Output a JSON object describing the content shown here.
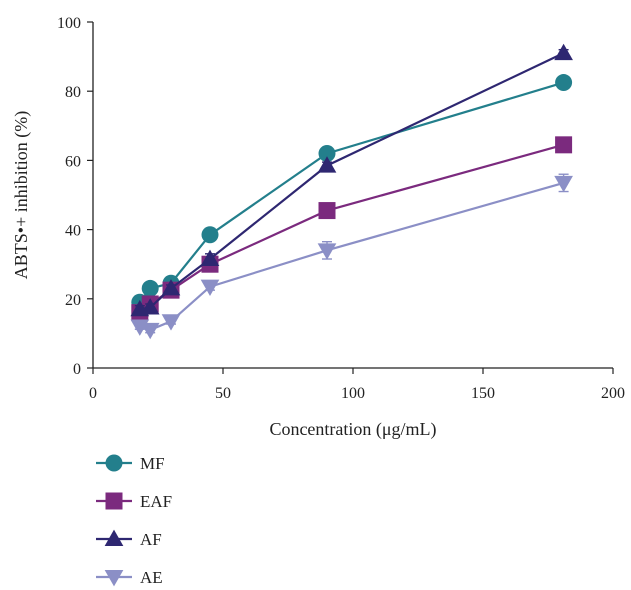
{
  "chart_data": {
    "type": "line",
    "xlabel": "Concentration (μg/mL)",
    "ylabel": "ABTS•+ inhibition (%)",
    "xlim": [
      0,
      200
    ],
    "ylim": [
      0,
      100
    ],
    "xticks": [
      0,
      50,
      100,
      150,
      200
    ],
    "yticks": [
      0,
      20,
      40,
      60,
      80,
      100
    ],
    "grid": false,
    "legend_placement": "bottom-left",
    "series": [
      {
        "name": "MF",
        "marker": "circle",
        "color": "#237f8c",
        "x": [
          18,
          22,
          30,
          45,
          90,
          181
        ],
        "y": [
          19,
          23,
          24.5,
          38.5,
          62,
          82.5
        ],
        "err": [
          0.8,
          0.8,
          0.8,
          1,
          1,
          1
        ]
      },
      {
        "name": "EAF",
        "marker": "square",
        "color": "#7b2a7e",
        "x": [
          18,
          22,
          30,
          45,
          90,
          181
        ],
        "y": [
          16,
          18.5,
          22.5,
          30,
          45.5,
          64.5
        ],
        "err": [
          1,
          1,
          1,
          1.5,
          1.5,
          1
        ]
      },
      {
        "name": "AF",
        "marker": "triangle-up",
        "color": "#2e2771",
        "x": [
          18,
          22,
          30,
          45,
          90,
          181
        ],
        "y": [
          17,
          17.5,
          23,
          31.5,
          58.5,
          91
        ],
        "err": [
          1,
          1,
          1,
          1.5,
          1,
          1
        ]
      },
      {
        "name": "AE",
        "marker": "triangle-down",
        "color": "#8b8fc6",
        "x": [
          18,
          22,
          30,
          45,
          90,
          181
        ],
        "y": [
          12,
          11,
          13.5,
          23.5,
          34,
          53.5
        ],
        "err": [
          0.8,
          0.8,
          0.8,
          1,
          2.5,
          2.5
        ]
      }
    ]
  }
}
